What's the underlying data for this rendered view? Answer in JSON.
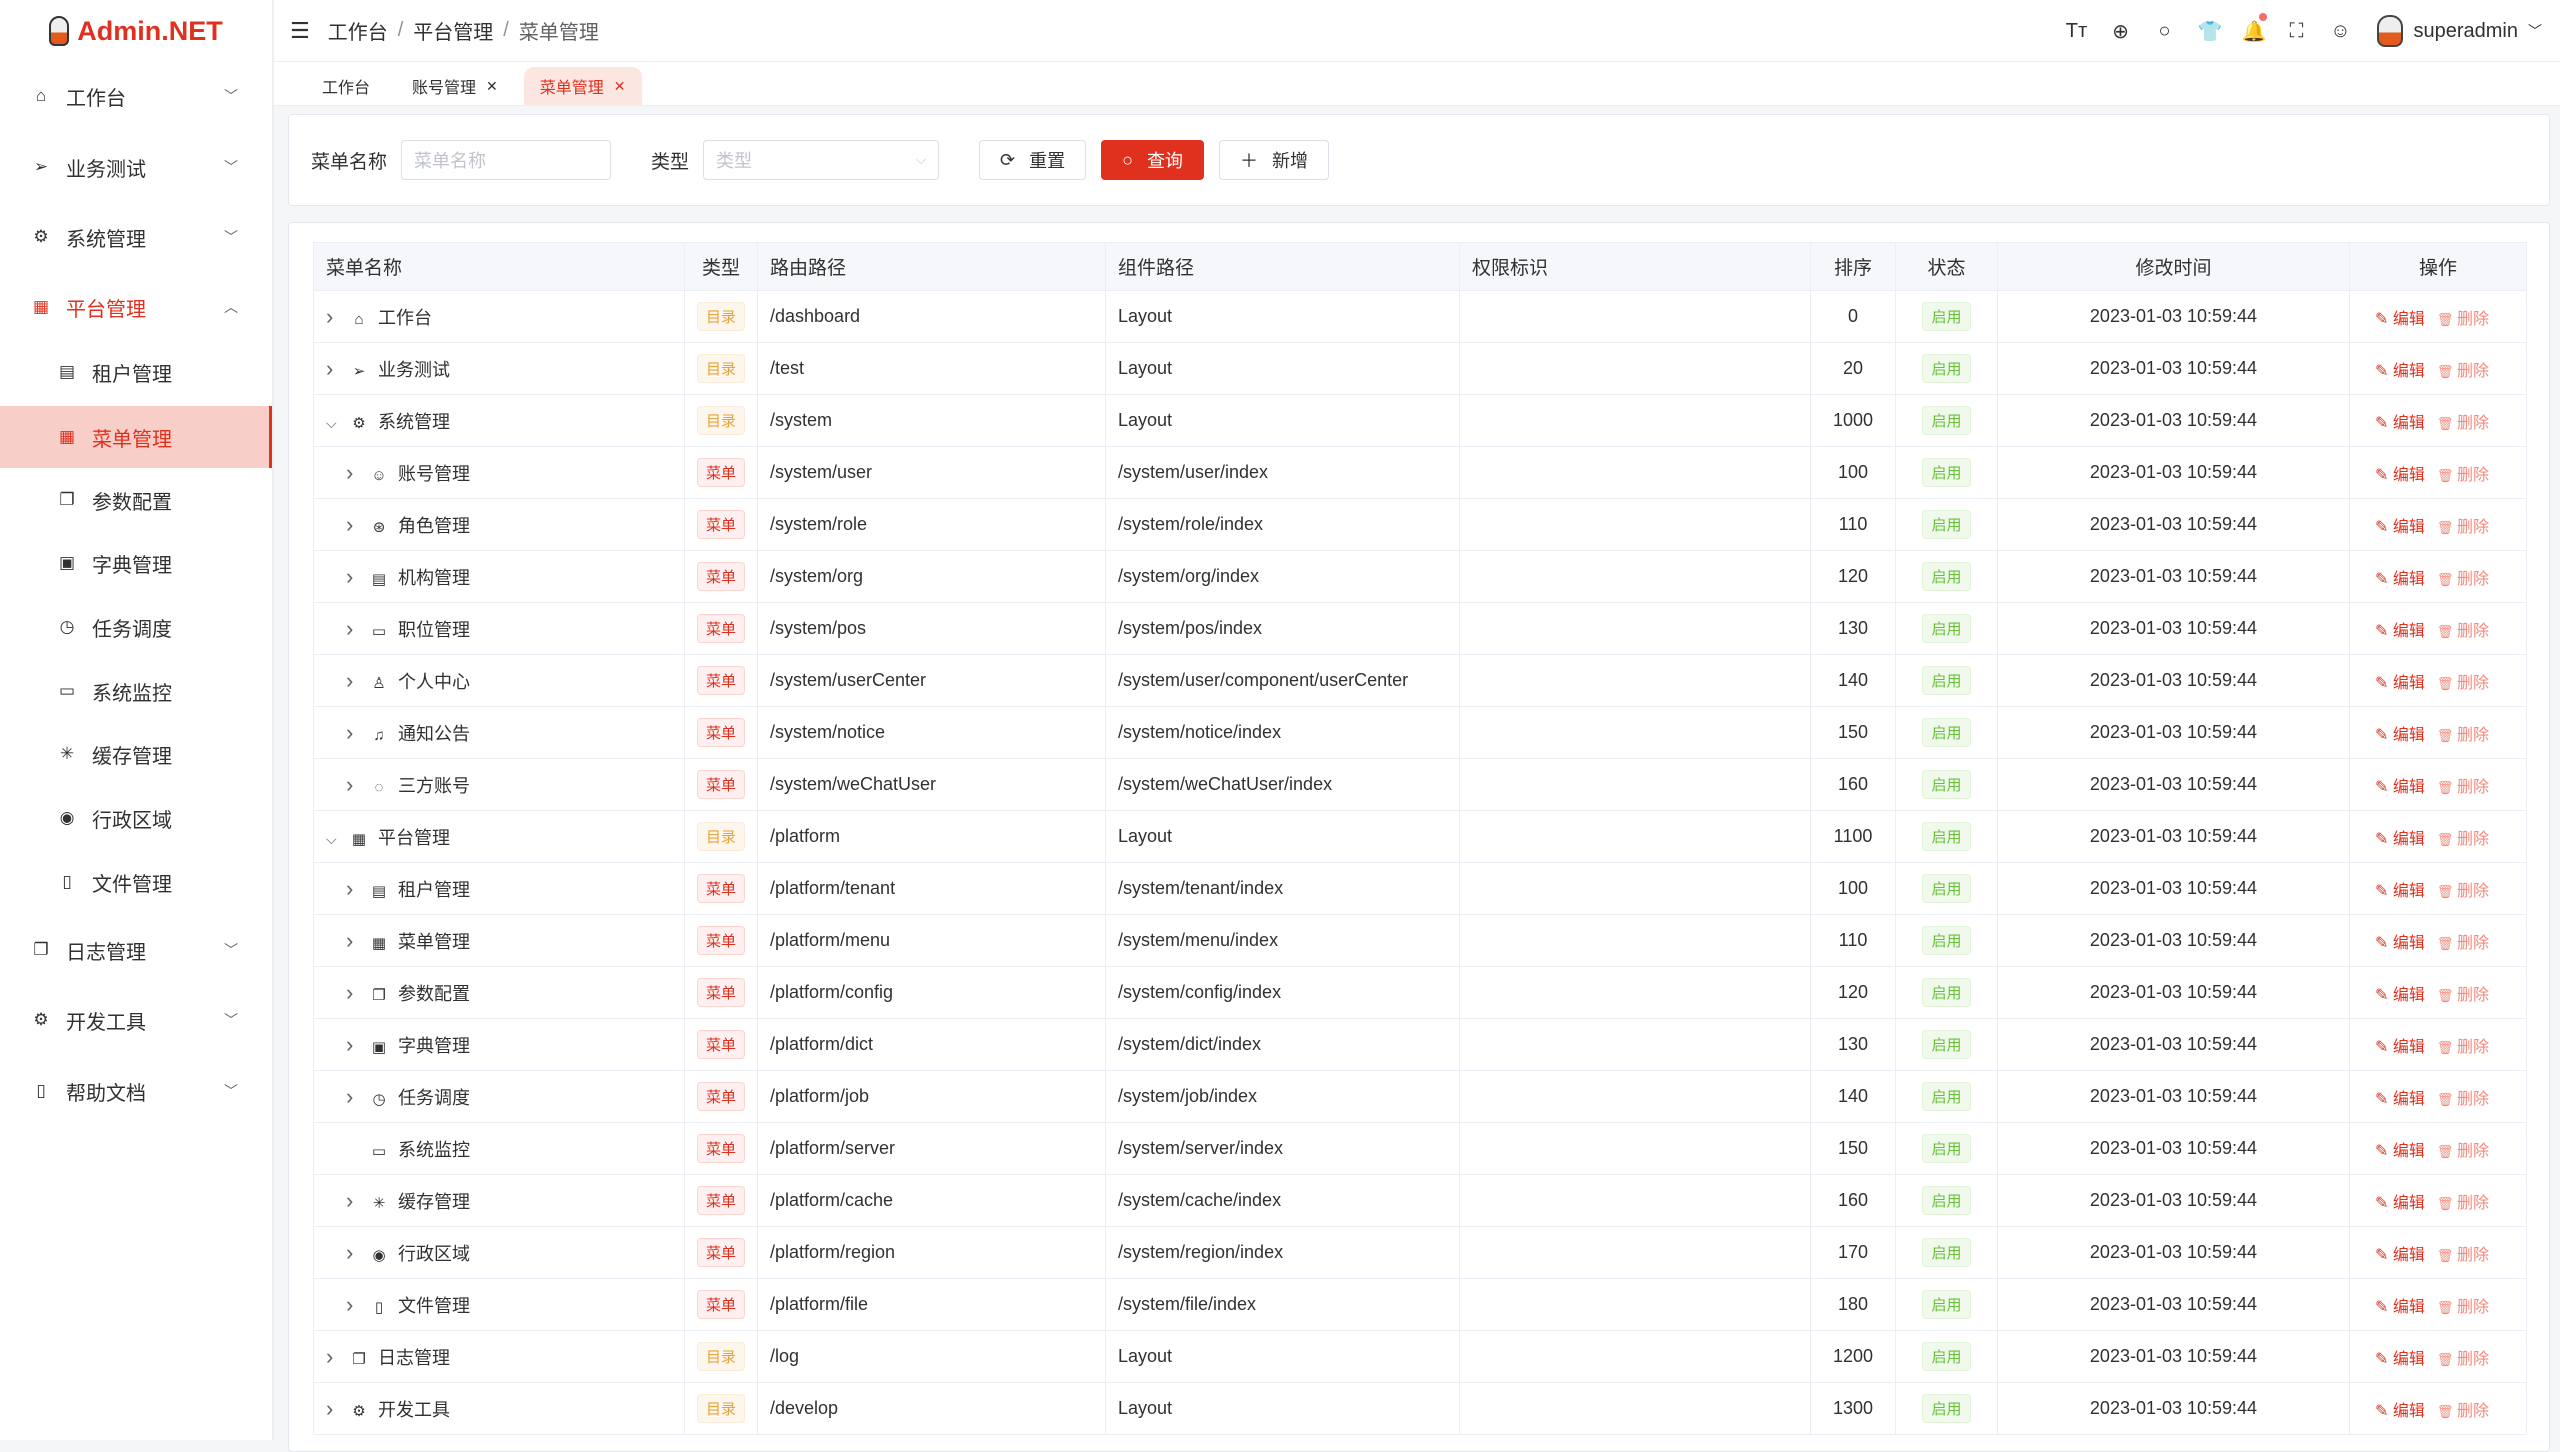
{
  "app": {
    "logo_text": "Admin.NET",
    "accent": "#e0301e"
  },
  "sidebar": {
    "items": [
      {
        "label": "工作台",
        "icon": "home-icon",
        "glyph": "⌂",
        "type": "group"
      },
      {
        "label": "业务测试",
        "icon": "send-icon",
        "glyph": "➢",
        "type": "group"
      },
      {
        "label": "系统管理",
        "icon": "gear-icon",
        "glyph": "⚙",
        "type": "group"
      },
      {
        "label": "平台管理",
        "icon": "grid-icon",
        "glyph": "▦",
        "type": "group",
        "open": true
      },
      {
        "label": "租户管理",
        "icon": "building-icon",
        "glyph": "▤",
        "type": "sub"
      },
      {
        "label": "菜单管理",
        "icon": "grid-icon",
        "glyph": "▦",
        "type": "sub",
        "active": true
      },
      {
        "label": "参数配置",
        "icon": "copy-icon",
        "glyph": "❐",
        "type": "sub"
      },
      {
        "label": "字典管理",
        "icon": "book-icon",
        "glyph": "▣",
        "type": "sub"
      },
      {
        "label": "任务调度",
        "icon": "alarm-clock-icon",
        "glyph": "◷",
        "type": "sub"
      },
      {
        "label": "系统监控",
        "icon": "monitor-icon",
        "glyph": "▭",
        "type": "sub"
      },
      {
        "label": "缓存管理",
        "icon": "loading-icon",
        "glyph": "✳",
        "type": "sub"
      },
      {
        "label": "行政区域",
        "icon": "location-icon",
        "glyph": "◉",
        "type": "sub"
      },
      {
        "label": "文件管理",
        "icon": "document-icon",
        "glyph": "▯",
        "type": "sub"
      },
      {
        "label": "日志管理",
        "icon": "log-icon",
        "glyph": "❐",
        "type": "group"
      },
      {
        "label": "开发工具",
        "icon": "cpu-icon",
        "glyph": "⚙",
        "type": "group"
      },
      {
        "label": "帮助文档",
        "icon": "notebook-icon",
        "glyph": "▯",
        "type": "group"
      }
    ]
  },
  "header": {
    "breadcrumb": [
      "工作台",
      "平台管理",
      "菜单管理"
    ],
    "username": "superadmin",
    "tools": [
      {
        "icon": "font-size-icon",
        "glyph": "Tт"
      },
      {
        "icon": "language-icon",
        "glyph": "⊕"
      },
      {
        "icon": "search-icon",
        "glyph": "○"
      },
      {
        "icon": "skin-icon",
        "glyph": "👕"
      },
      {
        "icon": "bell-icon",
        "glyph": "🔔",
        "dot": true
      },
      {
        "icon": "fullscreen-icon",
        "glyph": "⛶"
      },
      {
        "icon": "user-icon",
        "glyph": "☺"
      }
    ]
  },
  "tabs": [
    {
      "label": "工作台",
      "closable": false
    },
    {
      "label": "账号管理",
      "closable": true
    },
    {
      "label": "菜单管理",
      "closable": true,
      "active": true
    }
  ],
  "search": {
    "name_label": "菜单名称",
    "name_placeholder": "菜单名称",
    "type_label": "类型",
    "type_placeholder": "类型",
    "reset": "重置",
    "query": "查询",
    "add": "新增"
  },
  "table": {
    "columns": [
      "菜单名称",
      "类型",
      "路由路径",
      "组件路径",
      "权限标识",
      "排序",
      "状态",
      "修改时间",
      "操作"
    ],
    "edit_label": "编辑",
    "delete_label": "删除",
    "rows": [
      {
        "name": "工作台",
        "level": 0,
        "exp": ">",
        "icon": "home-icon",
        "glyph": "⌂",
        "type": "目录",
        "path": "/dashboard",
        "component": "Layout",
        "perm": "",
        "order": "0",
        "status": "启用",
        "time": "2023-01-03 10:59:44"
      },
      {
        "name": "业务测试",
        "level": 0,
        "exp": ">",
        "icon": "send-icon",
        "glyph": "➢",
        "type": "目录",
        "path": "/test",
        "component": "Layout",
        "perm": "",
        "order": "20",
        "status": "启用",
        "time": "2023-01-03 10:59:44"
      },
      {
        "name": "系统管理",
        "level": 0,
        "exp": "v",
        "icon": "gear-icon",
        "glyph": "⚙",
        "type": "目录",
        "path": "/system",
        "component": "Layout",
        "perm": "",
        "order": "1000",
        "status": "启用",
        "time": "2023-01-03 10:59:44"
      },
      {
        "name": "账号管理",
        "level": 1,
        "exp": ">",
        "icon": "user-icon",
        "glyph": "☺",
        "type": "菜单",
        "path": "/system/user",
        "component": "/system/user/index",
        "perm": "",
        "order": "100",
        "status": "启用",
        "time": "2023-01-03 10:59:44"
      },
      {
        "name": "角色管理",
        "level": 1,
        "exp": ">",
        "icon": "role-icon",
        "glyph": "⊛",
        "type": "菜单",
        "path": "/system/role",
        "component": "/system/role/index",
        "perm": "",
        "order": "110",
        "status": "启用",
        "time": "2023-01-03 10:59:44"
      },
      {
        "name": "机构管理",
        "level": 1,
        "exp": ">",
        "icon": "org-icon",
        "glyph": "▤",
        "type": "菜单",
        "path": "/system/org",
        "component": "/system/org/index",
        "perm": "",
        "order": "120",
        "status": "启用",
        "time": "2023-01-03 10:59:44"
      },
      {
        "name": "职位管理",
        "level": 1,
        "exp": ">",
        "icon": "position-icon",
        "glyph": "▭",
        "type": "菜单",
        "path": "/system/pos",
        "component": "/system/pos/index",
        "perm": "",
        "order": "130",
        "status": "启用",
        "time": "2023-01-03 10:59:44"
      },
      {
        "name": "个人中心",
        "level": 1,
        "exp": ">",
        "icon": "avatar-icon",
        "glyph": "♙",
        "type": "菜单",
        "path": "/system/userCenter",
        "component": "/system/user/component/userCenter",
        "perm": "",
        "order": "140",
        "status": "启用",
        "time": "2023-01-03 10:59:44"
      },
      {
        "name": "通知公告",
        "level": 1,
        "exp": ">",
        "icon": "bell-icon",
        "glyph": "♫",
        "type": "菜单",
        "path": "/system/notice",
        "component": "/system/notice/index",
        "perm": "",
        "order": "150",
        "status": "启用",
        "time": "2023-01-03 10:59:44"
      },
      {
        "name": "三方账号",
        "level": 1,
        "exp": ">",
        "icon": "chat-icon",
        "glyph": "◌",
        "type": "菜单",
        "path": "/system/weChatUser",
        "component": "/system/weChatUser/index",
        "perm": "",
        "order": "160",
        "status": "启用",
        "time": "2023-01-03 10:59:44"
      },
      {
        "name": "平台管理",
        "level": 0,
        "exp": "v",
        "icon": "grid-icon",
        "glyph": "▦",
        "type": "目录",
        "path": "/platform",
        "component": "Layout",
        "perm": "",
        "order": "1100",
        "status": "启用",
        "time": "2023-01-03 10:59:44"
      },
      {
        "name": "租户管理",
        "level": 1,
        "exp": ">",
        "icon": "building-icon",
        "glyph": "▤",
        "type": "菜单",
        "path": "/platform/tenant",
        "component": "/system/tenant/index",
        "perm": "",
        "order": "100",
        "status": "启用",
        "time": "2023-01-03 10:59:44"
      },
      {
        "name": "菜单管理",
        "level": 1,
        "exp": ">",
        "icon": "grid-icon",
        "glyph": "▦",
        "type": "菜单",
        "path": "/platform/menu",
        "component": "/system/menu/index",
        "perm": "",
        "order": "110",
        "status": "启用",
        "time": "2023-01-03 10:59:44"
      },
      {
        "name": "参数配置",
        "level": 1,
        "exp": ">",
        "icon": "copy-icon",
        "glyph": "❐",
        "type": "菜单",
        "path": "/platform/config",
        "component": "/system/config/index",
        "perm": "",
        "order": "120",
        "status": "启用",
        "time": "2023-01-03 10:59:44"
      },
      {
        "name": "字典管理",
        "level": 1,
        "exp": ">",
        "icon": "book-icon",
        "glyph": "▣",
        "type": "菜单",
        "path": "/platform/dict",
        "component": "/system/dict/index",
        "perm": "",
        "order": "130",
        "status": "启用",
        "time": "2023-01-03 10:59:44"
      },
      {
        "name": "任务调度",
        "level": 1,
        "exp": ">",
        "icon": "alarm-clock-icon",
        "glyph": "◷",
        "type": "菜单",
        "path": "/platform/job",
        "component": "/system/job/index",
        "perm": "",
        "order": "140",
        "status": "启用",
        "time": "2023-01-03 10:59:44"
      },
      {
        "name": "系统监控",
        "level": 1,
        "exp": "",
        "icon": "monitor-icon",
        "glyph": "▭",
        "type": "菜单",
        "path": "/platform/server",
        "component": "/system/server/index",
        "perm": "",
        "order": "150",
        "status": "启用",
        "time": "2023-01-03 10:59:44"
      },
      {
        "name": "缓存管理",
        "level": 1,
        "exp": ">",
        "icon": "loading-icon",
        "glyph": "✳",
        "type": "菜单",
        "path": "/platform/cache",
        "component": "/system/cache/index",
        "perm": "",
        "order": "160",
        "status": "启用",
        "time": "2023-01-03 10:59:44"
      },
      {
        "name": "行政区域",
        "level": 1,
        "exp": ">",
        "icon": "location-icon",
        "glyph": "◉",
        "type": "菜单",
        "path": "/platform/region",
        "component": "/system/region/index",
        "perm": "",
        "order": "170",
        "status": "启用",
        "time": "2023-01-03 10:59:44"
      },
      {
        "name": "文件管理",
        "level": 1,
        "exp": ">",
        "icon": "document-icon",
        "glyph": "▯",
        "type": "菜单",
        "path": "/platform/file",
        "component": "/system/file/index",
        "perm": "",
        "order": "180",
        "status": "启用",
        "time": "2023-01-03 10:59:44"
      },
      {
        "name": "日志管理",
        "level": 0,
        "exp": ">",
        "icon": "log-icon",
        "glyph": "❐",
        "type": "目录",
        "path": "/log",
        "component": "Layout",
        "perm": "",
        "order": "1200",
        "status": "启用",
        "time": "2023-01-03 10:59:44"
      },
      {
        "name": "开发工具",
        "level": 0,
        "exp": ">",
        "icon": "cpu-icon",
        "glyph": "⚙",
        "type": "目录",
        "path": "/develop",
        "component": "Layout",
        "perm": "",
        "order": "1300",
        "status": "启用",
        "time": "2023-01-03 10:59:44"
      }
    ]
  }
}
